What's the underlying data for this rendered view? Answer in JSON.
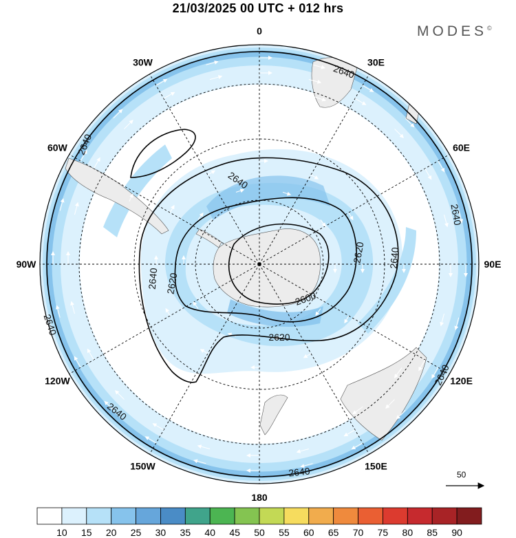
{
  "header": {
    "title": "21/03/2025  00 UTC  + 012 hrs",
    "brand": "MODES",
    "brand_mark": "©"
  },
  "map": {
    "projection": "polar-stereographic-south",
    "longitude_labels": [
      {
        "text": "0",
        "lon": 0
      },
      {
        "text": "30E",
        "lon": 30
      },
      {
        "text": "60E",
        "lon": 60
      },
      {
        "text": "90E",
        "lon": 90
      },
      {
        "text": "120E",
        "lon": 120
      },
      {
        "text": "150E",
        "lon": 150
      },
      {
        "text": "180",
        "lon": 180
      },
      {
        "text": "150W",
        "lon": -150
      },
      {
        "text": "120W",
        "lon": -120
      },
      {
        "text": "90W",
        "lon": -90
      },
      {
        "text": "60W",
        "lon": -60
      },
      {
        "text": "30W",
        "lon": -30
      }
    ],
    "contour_labels": [
      "2640",
      "2640",
      "2640",
      "2640",
      "2640",
      "2640",
      "2640",
      "2640",
      "2640",
      "2640",
      "2620",
      "2620",
      "2620",
      "2600"
    ],
    "wind_reference": {
      "label": "50",
      "value": 50
    }
  },
  "colorbar": {
    "ticks": [
      "10",
      "15",
      "20",
      "25",
      "30",
      "35",
      "40",
      "45",
      "50",
      "55",
      "60",
      "65",
      "70",
      "75",
      "80",
      "85",
      "90"
    ],
    "colors": [
      "#ffffff",
      "#dcf1fd",
      "#b6e1f8",
      "#86c3ec",
      "#66a6db",
      "#4a8cc6",
      "#40a48b",
      "#4cb552",
      "#84c451",
      "#c3d955",
      "#f6dc5e",
      "#f1ac4d",
      "#ef8a3d",
      "#ea5f33",
      "#dc3b2f",
      "#c62a2e",
      "#a82326",
      "#821c1e"
    ],
    "extend": "both"
  },
  "colors": {
    "land": "#ececec",
    "light_band": "#dcf1fd",
    "mid_band": "#b6e1f8",
    "strong_band": "#86c3ec"
  }
}
